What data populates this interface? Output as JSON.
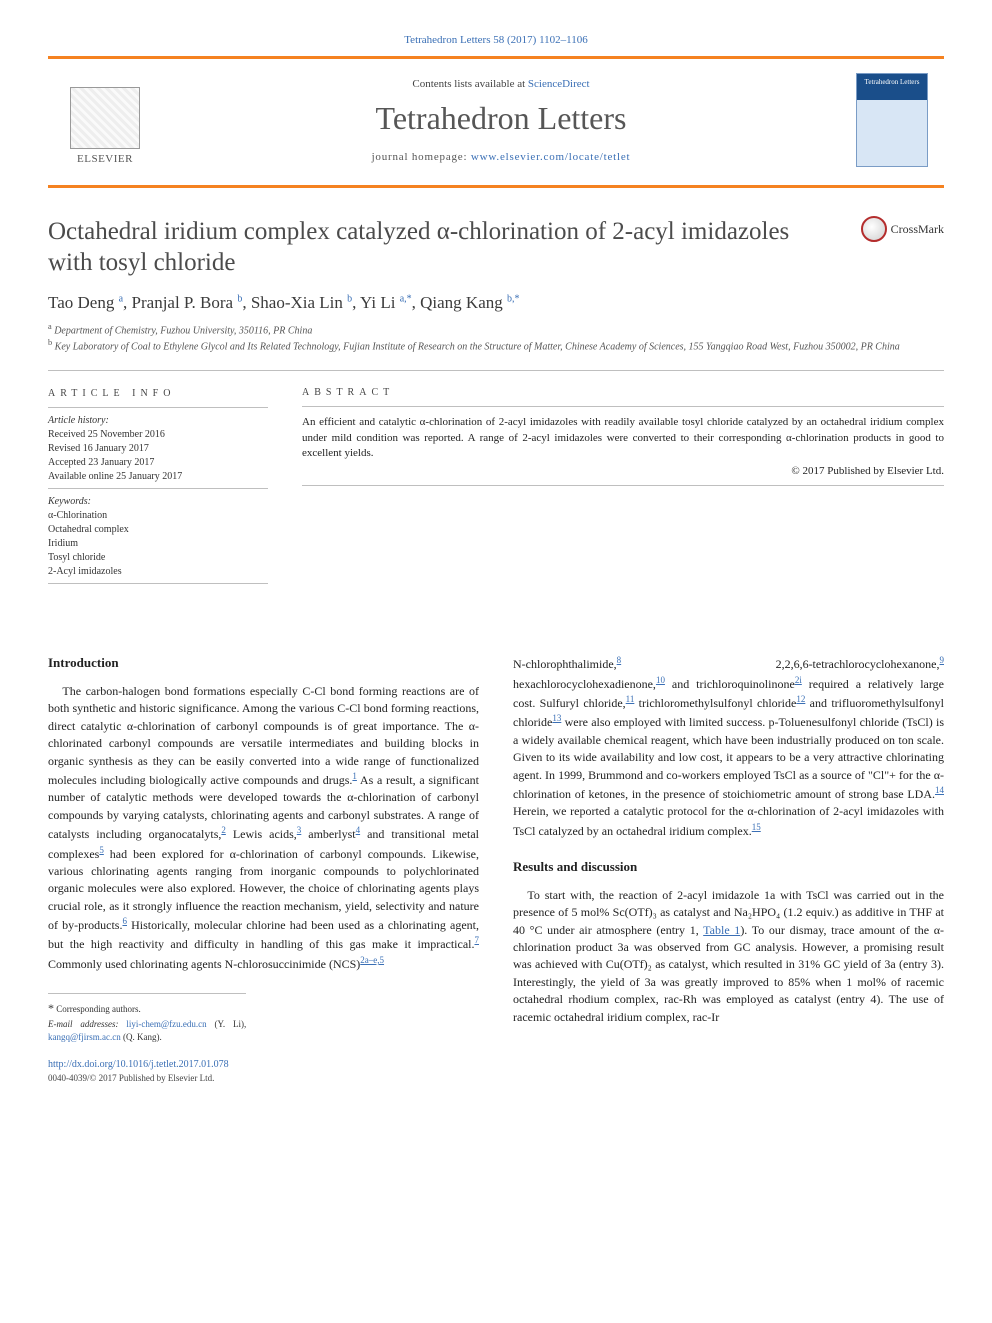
{
  "page": {
    "citation": "Tetrahedron Letters 58 (2017) 1102–1106",
    "contents_prefix": "Contents lists available at ",
    "contents_link": "ScienceDirect",
    "journal": "Tetrahedron Letters",
    "homepage_prefix": "journal homepage: ",
    "homepage_url": "www.elsevier.com/locate/tetlet",
    "publisher_logo_text": "ELSEVIER",
    "cover_label": "Tetrahedron Letters",
    "crossmark": "CrossMark"
  },
  "article": {
    "title": "Octahedral iridium complex catalyzed α-chlorination of 2-acyl imidazoles with tosyl chloride",
    "authors_html": "Tao Deng <sup>a</sup>, Pranjal P. Bora <sup>b</sup>, Shao-Xia Lin <sup>b</sup>, Yi Li <sup>a,*</sup>, Qiang Kang <sup>b,*</sup>",
    "affiliations": {
      "a": "Department of Chemistry, Fuzhou University, 350116, PR China",
      "b": "Key Laboratory of Coal to Ethylene Glycol and Its Related Technology, Fujian Institute of Research on the Structure of Matter, Chinese Academy of Sciences, 155 Yangqiao Road West, Fuzhou 350002, PR China"
    }
  },
  "info": {
    "heading": "ARTICLE INFO",
    "history_label": "Article history:",
    "received": "Received 25 November 2016",
    "revised": "Revised 16 January 2017",
    "accepted": "Accepted 23 January 2017",
    "online": "Available online 25 January 2017",
    "keywords_label": "Keywords:",
    "keywords": [
      "α-Chlorination",
      "Octahedral complex",
      "Iridium",
      "Tosyl chloride",
      "2-Acyl imidazoles"
    ]
  },
  "abstract": {
    "heading": "ABSTRACT",
    "text": "An efficient and catalytic α-chlorination of 2-acyl imidazoles with readily available tosyl chloride catalyzed by an octahedral iridium complex under mild condition was reported. A range of 2-acyl imidazoles were converted to their corresponding α-chlorination products in good to excellent yields.",
    "copyright": "© 2017 Published by Elsevier Ltd."
  },
  "sections": {
    "intro_title": "Introduction",
    "intro_p1": "The carbon-halogen bond formations especially C-Cl bond forming reactions are of both synthetic and historic significance. Among the various C-Cl bond forming reactions, direct catalytic α-chlorination of carbonyl compounds is of great importance. The α-chlorinated carbonyl compounds are versatile intermediates and building blocks in organic synthesis as they can be easily converted into a wide range of functionalized molecules including biologically active compounds and drugs.",
    "intro_p1b": " As a result, a significant number of catalytic methods were developed towards the α-chlorination of carbonyl compounds by varying catalysts, chlorinating agents and carbonyl substrates. A range of catalysts including organocatalyts,",
    "intro_p1c": " Lewis acids,",
    "intro_p1d": " amberlyst",
    "intro_p1e": " and transitional metal complexes",
    "intro_p1f": " had been explored for α-chlorination of carbonyl compounds. Likewise, various chlorinating agents ranging from inorganic compounds to polychlorinated organic molecules were also explored. However, the choice of chlorinating agents plays crucial role, as it strongly influence the reaction mechanism, yield, selectivity and nature of by-products.",
    "intro_p1g": " Historically, molecular chlorine had been used as a chlorinating agent, but the high reactivity and difficulty in handling of this gas make it impractical.",
    "intro_p1h": " Commonly used chlorinating agents N-chlorosuccinimide (NCS)",
    "intro_p2a": "N-chlorophthalimide,",
    "intro_p2b": " 2,2,6,6-tetrachlorocyclohexanone,",
    "intro_p2c": " hexachlorocyclohexadienone,",
    "intro_p2d": " and trichloroquinolinone",
    "intro_p2e": " required a relatively large cost. Sulfuryl chloride,",
    "intro_p2f": " trichloromethylsulfonyl chloride",
    "intro_p2g": " and trifluoromethylsulfonyl chloride",
    "intro_p2h": " were also employed with limited success. p-Toluenesulfonyl chloride (TsCl) is a widely available chemical reagent, which have been industrially produced on ton scale. Given to its wide availability and low cost, it appears to be a very attractive chlorinating agent. In 1999, Brummond and co-workers employed TsCl as a source of \"Cl\"+ for the α-chlorination of ketones, in the presence of stoichiometric amount of strong base LDA.",
    "intro_p2i": " Herein, we reported a catalytic protocol for the α-chlorination of 2-acyl imidazoles with TsCl catalyzed by an octahedral iridium complex.",
    "results_title": "Results and discussion",
    "results_p1a": "To start with, the reaction of 2-acyl imidazole 1a with TsCl was carried out in the presence of 5 mol% Sc(OTf)₃ as catalyst and Na₂HPO₄ (1.2 equiv.) as additive in THF at 40 °C under air atmosphere (entry 1, ",
    "results_p1b": "). To our dismay, trace amount of the α-chlorination product 3a was observed from GC analysis. However, a promising result was achieved with Cu(OTf)₂ as catalyst, which resulted in 31% GC yield of 3a (entry 3). Interestingly, the yield of 3a was greatly improved to 85% when 1 mol% of racemic octahedral rhodium complex, rac-Rh was employed as catalyst (entry 4). The use of racemic octahedral iridium complex, rac-Ir",
    "table1_link": "Table 1"
  },
  "refs": {
    "r1": "1",
    "r2": "2",
    "r3": "3",
    "r4": "4",
    "r5": "5",
    "r6": "6",
    "r7": "7",
    "r2ae5": "2a–e,5",
    "r8": "8",
    "r9": "9",
    "r10": "10",
    "r2i": "2i",
    "r11": "11",
    "r12": "12",
    "r13": "13",
    "r14": "14",
    "r15": "15"
  },
  "footnotes": {
    "corr": "Corresponding authors.",
    "email_label": "E-mail addresses:",
    "email1": "liyi-chem@fzu.edu.cn",
    "email1_who": " (Y. Li), ",
    "email2": "kangq@fjirsm.ac.cn",
    "email2_who": " (Q. Kang)."
  },
  "doi": {
    "link": "http://dx.doi.org/10.1016/j.tetlet.2017.01.078",
    "issn_line": "0040-4039/© 2017 Published by Elsevier Ltd."
  },
  "colors": {
    "accent_orange": "#f58220",
    "link_blue": "#3a6fb5"
  }
}
